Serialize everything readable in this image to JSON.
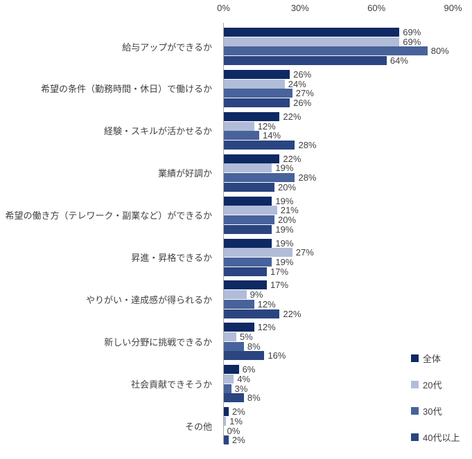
{
  "chart_data": {
    "type": "bar",
    "orientation": "horizontal",
    "title": "",
    "xlabel": "",
    "ylabel": "",
    "xlim": [
      0,
      90
    ],
    "unit": "%",
    "grid": false,
    "value_labels": true,
    "legend_position": "right-bottom",
    "x_ticks": [
      "0%",
      "30%",
      "60%",
      "90%"
    ],
    "x_tick_values": [
      0,
      30,
      60,
      90
    ],
    "categories": [
      "給与アップができるか",
      "希望の条件（勤務時間・休日）で働けるか",
      "経験・スキルが活かせるか",
      "業績が好調か",
      "希望の働き方（テレワーク・副業など）ができるか",
      "昇進・昇格できるか",
      "やりがい・達成感が得られるか",
      "新しい分野に挑戦できるか",
      "社会貢献できそうか",
      "その他"
    ],
    "series": [
      {
        "name": "全体",
        "color": "#0E2963",
        "values": [
          69,
          26,
          22,
          22,
          19,
          19,
          17,
          12,
          6,
          2
        ]
      },
      {
        "name": "20代",
        "color": "#B1BDD8",
        "values": [
          69,
          24,
          12,
          19,
          21,
          27,
          9,
          5,
          4,
          1
        ]
      },
      {
        "name": "30代",
        "color": "#48629B",
        "values": [
          80,
          27,
          14,
          28,
          20,
          19,
          12,
          8,
          3,
          0
        ]
      },
      {
        "name": "40代以上",
        "color": "#2B4581",
        "values": [
          64,
          26,
          28,
          20,
          19,
          17,
          22,
          16,
          8,
          2
        ]
      }
    ],
    "value_label_format": "{v}%"
  },
  "colors": {
    "background": "#FFFFFF",
    "axis_line": "#A6A6A6",
    "text": "#404040"
  }
}
